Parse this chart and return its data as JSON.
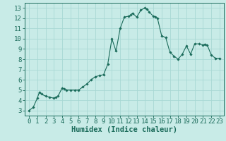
{
  "x": [
    0,
    0.5,
    1,
    1.25,
    1.5,
    2,
    2.5,
    3,
    3.25,
    3.5,
    4,
    4.25,
    4.5,
    5,
    5.5,
    6,
    6.5,
    7,
    7.5,
    8,
    8.5,
    9,
    9.5,
    10,
    10.5,
    11,
    11.5,
    12,
    12.25,
    12.5,
    13,
    13.5,
    14,
    14.25,
    14.5,
    15,
    15.25,
    15.5,
    16,
    16.5,
    17,
    17.5,
    18,
    18.5,
    19,
    19.5,
    20,
    20.5,
    21,
    21.25,
    21.5,
    22,
    22.5,
    23
  ],
  "y": [
    3.0,
    3.3,
    4.2,
    4.8,
    4.6,
    4.4,
    4.3,
    4.2,
    4.3,
    4.4,
    5.2,
    5.1,
    5.0,
    5.0,
    5.0,
    5.0,
    5.3,
    5.6,
    6.0,
    6.3,
    6.4,
    6.5,
    7.5,
    10.0,
    8.8,
    11.0,
    12.1,
    12.2,
    12.3,
    12.5,
    12.1,
    12.8,
    13.0,
    12.9,
    12.6,
    12.2,
    12.15,
    12.0,
    10.3,
    10.1,
    8.7,
    8.3,
    8.0,
    8.5,
    9.3,
    8.5,
    9.5,
    9.5,
    9.4,
    9.45,
    9.4,
    8.4,
    8.1,
    8.1
  ],
  "line_color": "#1a6b5a",
  "marker": "D",
  "markersize": 1.8,
  "bg_color": "#c8ebe7",
  "grid_color": "#a8d8d4",
  "xlabel": "Humidex (Indice chaleur)",
  "xlabel_fontsize": 7.5,
  "tick_fontsize": 6.5,
  "ylim": [
    2.5,
    13.5
  ],
  "xlim": [
    -0.5,
    23.5
  ],
  "yticks": [
    3,
    4,
    5,
    6,
    7,
    8,
    9,
    10,
    11,
    12,
    13
  ],
  "xticks": [
    0,
    1,
    2,
    3,
    4,
    5,
    6,
    7,
    8,
    9,
    10,
    11,
    12,
    13,
    14,
    15,
    16,
    17,
    18,
    19,
    20,
    21,
    22,
    23
  ]
}
